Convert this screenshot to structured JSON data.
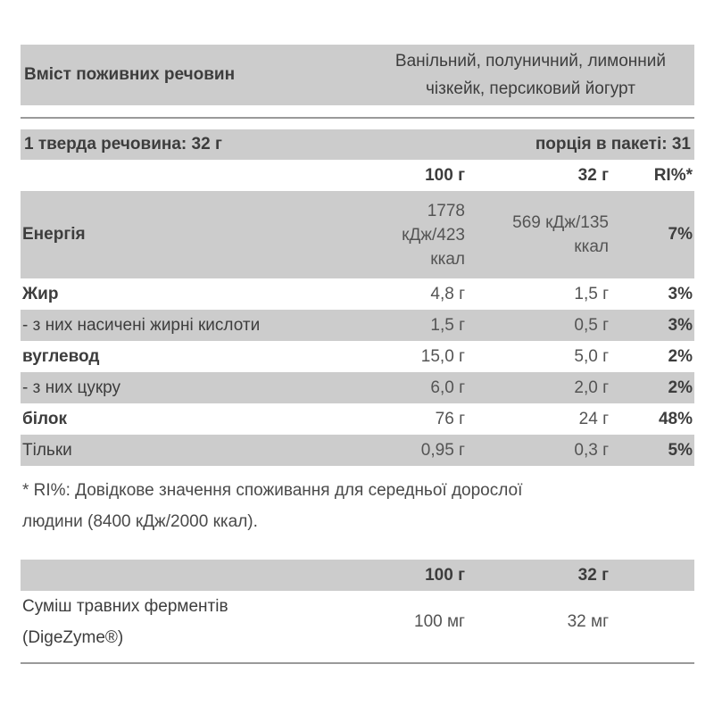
{
  "colors": {
    "row_shade": "#cccccc",
    "text_primary": "#3d3d3d",
    "text_secondary": "#545454",
    "divider": "#9a9a9a",
    "page_background": "#ffffff"
  },
  "header": {
    "title": "Вміст поживних речовин",
    "flavors_line1": "Ванільний, полуничний, лимонний",
    "flavors_line2": "чізкейк, персиковий йогурт"
  },
  "serving_bar": {
    "left": "1 тверда речовина: 32 г",
    "right": "порція в пакеті: 31"
  },
  "nutrition_table": {
    "col_headers": {
      "per100": "100 г",
      "per32": "32 г",
      "ri": "RI%*"
    },
    "rows": [
      {
        "label": "Енергія",
        "per100_lines": [
          "1778",
          "кДж/423",
          "ккал"
        ],
        "per32_lines": [
          "569 кДж/135",
          "ккал"
        ],
        "ri": "7%"
      },
      {
        "label": "Жир",
        "per100": "4,8 г",
        "per32": "1,5 г",
        "ri": "3%"
      },
      {
        "label": "- з них насичені жирні кислоти",
        "per100": "1,5 г",
        "per32": "0,5 г",
        "ri": "3%"
      },
      {
        "label": "вуглевод",
        "per100": "15,0 г",
        "per32": "5,0 г",
        "ri": "2%"
      },
      {
        "label": "- з них цукру",
        "per100": "6,0 г",
        "per32": "2,0 г",
        "ri": "2%"
      },
      {
        "label": "білок",
        "per100": "76 г",
        "per32": "24 г",
        "ri": "48%"
      },
      {
        "label": "Тільки",
        "per100": "0,95 г",
        "per32": "0,3 г",
        "ri": "5%"
      }
    ]
  },
  "footnote": {
    "line1": "* RI%: Довідкове значення споживання для середньої дорослої",
    "line2": "людини (8400 кДж/2000 ккал)."
  },
  "enzymes_table": {
    "col_headers": {
      "per100": "100 г",
      "per32": "32 г"
    },
    "row": {
      "label_line1": "Суміш травних ферментів",
      "label_line2": "(DigeZyme®)",
      "per100": "100 мг",
      "per32": "32 мг"
    }
  }
}
